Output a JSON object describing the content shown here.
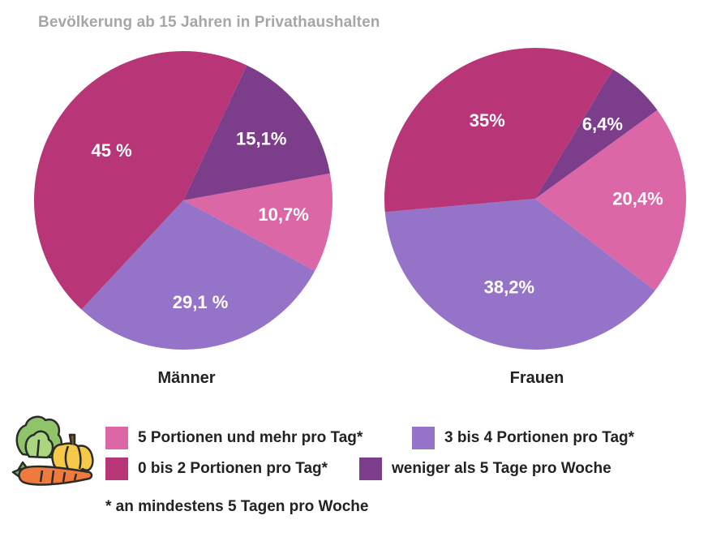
{
  "title": "Bevölkerung ab 15 Jahren in Privathaushalten",
  "colors": {
    "five_plus": "#dc67a6",
    "three_four": "#9573c8",
    "zero_two": "#b83578",
    "less_five_days": "#7c3d8a"
  },
  "legend": {
    "five_plus": "5 Portionen und mehr pro Tag*",
    "three_four": "3 bis 4 Portionen pro Tag*",
    "zero_two": "0 bis 2 Portionen pro Tag*",
    "less_five_days": "weniger als 5 Tage pro Woche"
  },
  "footnote": "* an mindestens 5 Tagen pro Woche",
  "icon": "vegetables-icon",
  "chart_data": [
    {
      "type": "pie",
      "title": "Männer",
      "slices": [
        {
          "category": "five_plus",
          "value": 10.7,
          "label": "10,7%"
        },
        {
          "category": "three_four",
          "value": 29.1,
          "label": "29,1 %"
        },
        {
          "category": "zero_two",
          "value": 45.0,
          "label": "45 %"
        },
        {
          "category": "less_five_days",
          "value": 15.1,
          "label": "15,1%"
        }
      ]
    },
    {
      "type": "pie",
      "title": "Frauen",
      "slices": [
        {
          "category": "five_plus",
          "value": 20.4,
          "label": "20,4%"
        },
        {
          "category": "three_four",
          "value": 38.2,
          "label": "38,2%"
        },
        {
          "category": "zero_two",
          "value": 35.0,
          "label": "35%"
        },
        {
          "category": "less_five_days",
          "value": 6.4,
          "label": "6,4%"
        }
      ]
    }
  ]
}
